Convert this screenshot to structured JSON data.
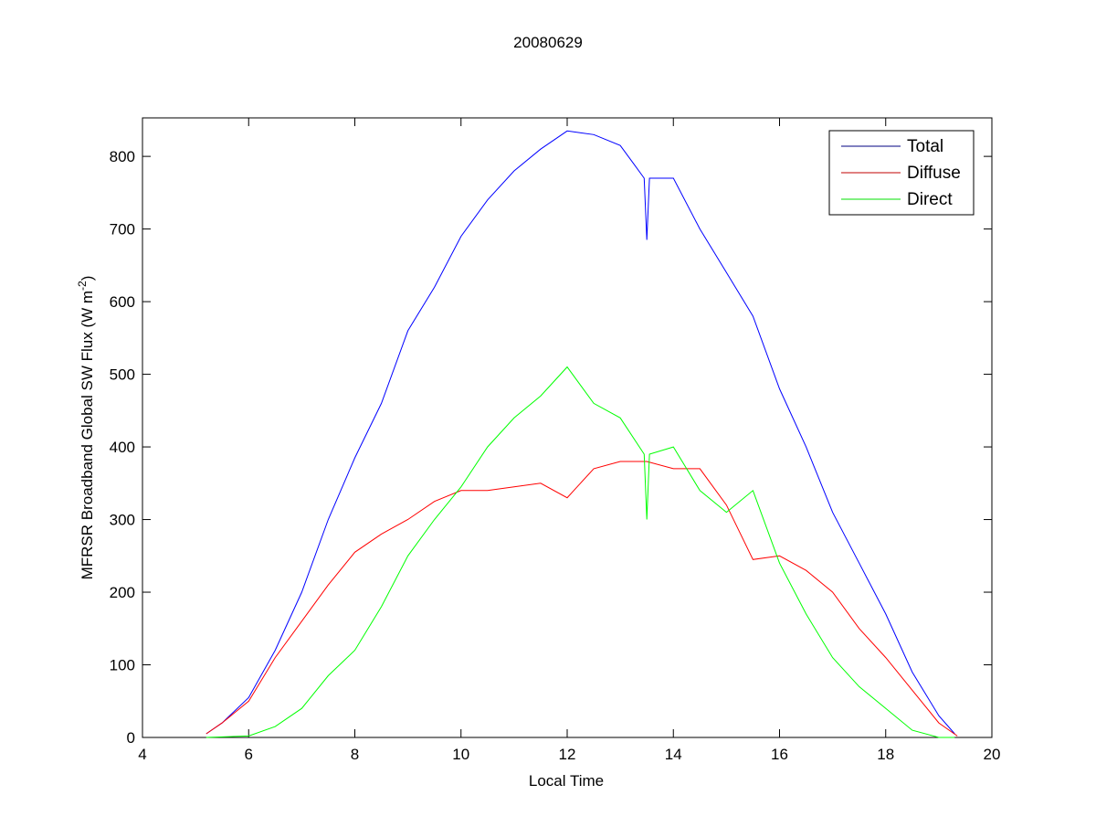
{
  "chart_data": {
    "type": "line",
    "title": "20080629",
    "xlabel": "Local Time",
    "ylabel": "MFRSR Broadband Global SW Flux (W m",
    "ylabel_sup": "-2",
    "ylabel_end": ")",
    "xlim": [
      4,
      20
    ],
    "ylim": [
      0,
      853
    ],
    "xticks": [
      4,
      6,
      8,
      10,
      12,
      14,
      16,
      18,
      20
    ],
    "yticks": [
      0,
      100,
      200,
      300,
      400,
      500,
      600,
      700,
      800
    ],
    "grid": false,
    "legend_position": "top-right",
    "series": [
      {
        "name": "Total",
        "color": "#0000ff",
        "x": [
          5.2,
          5.5,
          6,
          6.5,
          7,
          7.5,
          8,
          8.5,
          9,
          9.5,
          10,
          10.5,
          11,
          11.5,
          12,
          12.5,
          13,
          13.25,
          13.45,
          13.5,
          13.55,
          14,
          14.5,
          15,
          15.5,
          16,
          16.5,
          17,
          17.5,
          18,
          18.5,
          19,
          19.3
        ],
        "y": [
          5,
          20,
          55,
          120,
          200,
          300,
          385,
          460,
          560,
          620,
          690,
          740,
          780,
          810,
          835,
          830,
          815,
          790,
          770,
          685,
          770,
          770,
          700,
          640,
          580,
          480,
          400,
          310,
          240,
          170,
          90,
          30,
          5
        ]
      },
      {
        "name": "Diffuse",
        "color": "#ff0000",
        "x": [
          5.2,
          5.5,
          6,
          6.5,
          7,
          7.5,
          8,
          8.5,
          9,
          9.5,
          10,
          10.5,
          11,
          11.5,
          12,
          12.5,
          13,
          13.5,
          14,
          14.5,
          15,
          15.5,
          16,
          16.5,
          17,
          17.5,
          18,
          18.5,
          19,
          19.35
        ],
        "y": [
          5,
          20,
          50,
          110,
          160,
          210,
          255,
          280,
          300,
          325,
          340,
          340,
          345,
          350,
          330,
          370,
          380,
          380,
          370,
          370,
          320,
          245,
          250,
          230,
          200,
          150,
          110,
          65,
          20,
          2
        ]
      },
      {
        "name": "Direct",
        "color": "#00ff00",
        "x": [
          5.2,
          6,
          6.5,
          7,
          7.5,
          8,
          8.5,
          9,
          9.5,
          10,
          10.5,
          11,
          11.5,
          12,
          12.5,
          13,
          13.45,
          13.5,
          13.55,
          14,
          14.5,
          15,
          15.5,
          16,
          16.5,
          17,
          17.5,
          18,
          18.5,
          19,
          19.3
        ],
        "y": [
          0,
          2,
          15,
          40,
          85,
          120,
          180,
          250,
          300,
          345,
          400,
          440,
          470,
          510,
          460,
          440,
          390,
          300,
          390,
          400,
          340,
          310,
          340,
          240,
          170,
          110,
          70,
          40,
          10,
          0,
          0
        ]
      }
    ]
  }
}
